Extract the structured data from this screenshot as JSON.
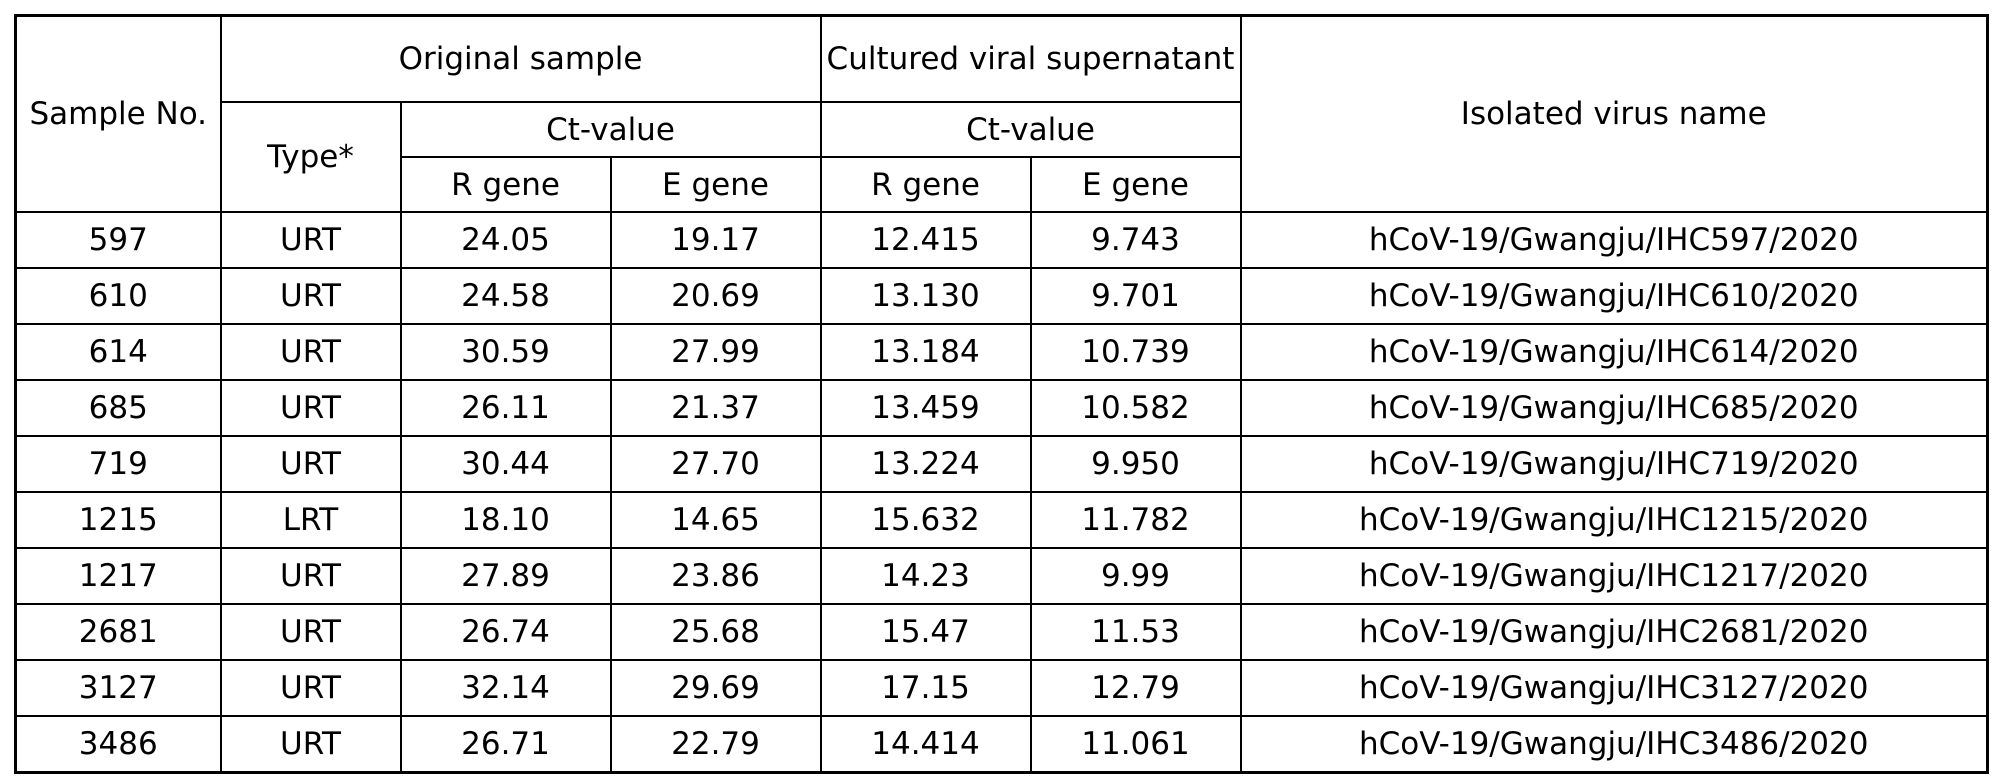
{
  "table": {
    "headers": {
      "sample_no": "Sample No.",
      "original_sample": "Original sample",
      "cultured": "Cultured viral supernatant",
      "isolated": "Isolated virus name",
      "type": "Type*",
      "ct_value_original": "Ct-value",
      "ct_value_cultured": "Ct-value",
      "r_gene_original": "R gene",
      "e_gene_original": "E gene",
      "r_gene_cultured": "R gene",
      "e_gene_cultured": "E gene"
    },
    "rows": [
      {
        "sample": "597",
        "type": "URT",
        "orig_r": "24.05",
        "orig_e": "19.17",
        "cult_r": "12.415",
        "cult_e": "9.743",
        "name": "hCoV-19/Gwangju/IHC597/2020"
      },
      {
        "sample": "610",
        "type": "URT",
        "orig_r": "24.58",
        "orig_e": "20.69",
        "cult_r": "13.130",
        "cult_e": "9.701",
        "name": "hCoV-19/Gwangju/IHC610/2020"
      },
      {
        "sample": "614",
        "type": "URT",
        "orig_r": "30.59",
        "orig_e": "27.99",
        "cult_r": "13.184",
        "cult_e": "10.739",
        "name": "hCoV-19/Gwangju/IHC614/2020"
      },
      {
        "sample": "685",
        "type": "URT",
        "orig_r": "26.11",
        "orig_e": "21.37",
        "cult_r": "13.459",
        "cult_e": "10.582",
        "name": "hCoV-19/Gwangju/IHC685/2020"
      },
      {
        "sample": "719",
        "type": "URT",
        "orig_r": "30.44",
        "orig_e": "27.70",
        "cult_r": "13.224",
        "cult_e": "9.950",
        "name": "hCoV-19/Gwangju/IHC719/2020"
      },
      {
        "sample": "1215",
        "type": "LRT",
        "orig_r": "18.10",
        "orig_e": "14.65",
        "cult_r": "15.632",
        "cult_e": "11.782",
        "name": "hCoV-19/Gwangju/IHC1215/2020"
      },
      {
        "sample": "1217",
        "type": "URT",
        "orig_r": "27.89",
        "orig_e": "23.86",
        "cult_r": "14.23",
        "cult_e": "9.99",
        "name": "hCoV-19/Gwangju/IHC1217/2020"
      },
      {
        "sample": "2681",
        "type": "URT",
        "orig_r": "26.74",
        "orig_e": "25.68",
        "cult_r": "15.47",
        "cult_e": "11.53",
        "name": "hCoV-19/Gwangju/IHC2681/2020"
      },
      {
        "sample": "3127",
        "type": "URT",
        "orig_r": "32.14",
        "orig_e": "29.69",
        "cult_r": "17.15",
        "cult_e": "12.79",
        "name": "hCoV-19/Gwangju/IHC3127/2020"
      },
      {
        "sample": "3486",
        "type": "URT",
        "orig_r": "26.71",
        "orig_e": "22.79",
        "cult_r": "14.414",
        "cult_e": "11.061",
        "name": "hCoV-19/Gwangju/IHC3486/2020"
      }
    ]
  }
}
